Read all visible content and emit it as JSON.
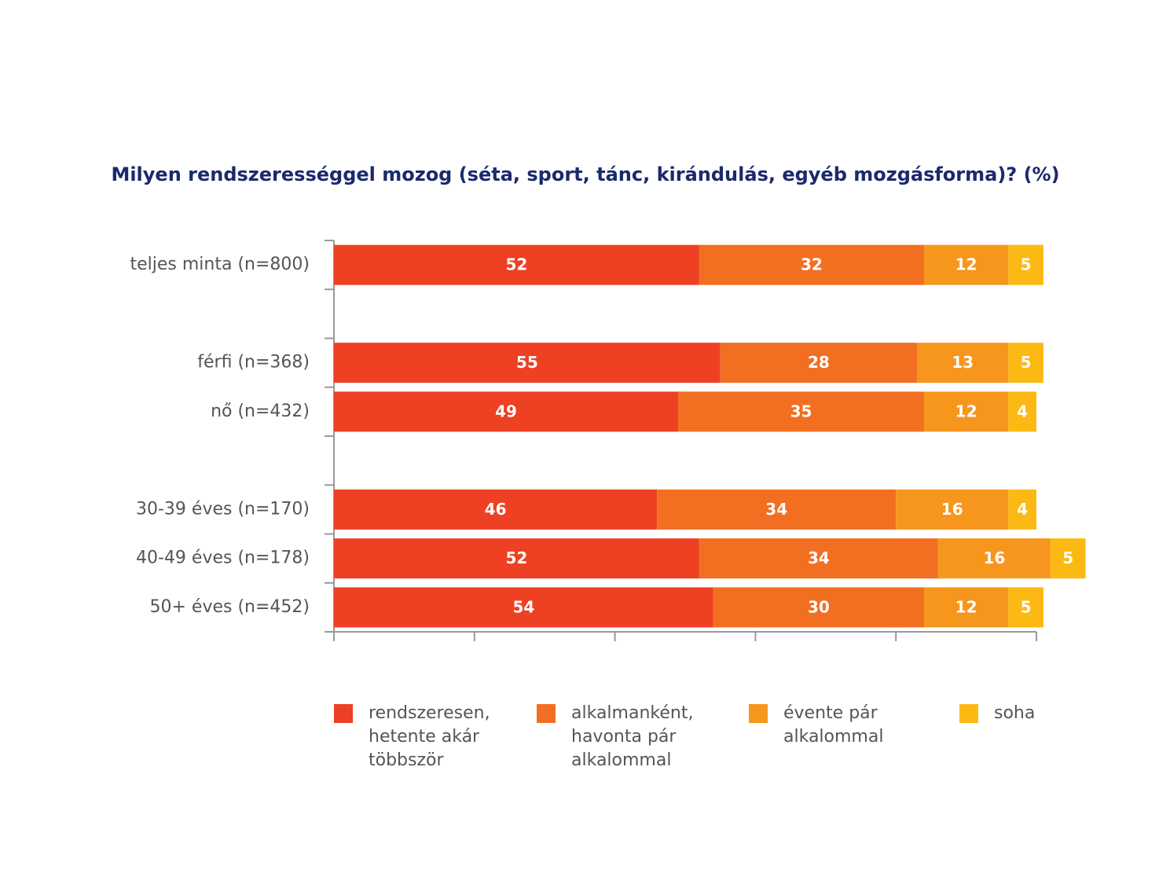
{
  "chart_data": {
    "type": "stacked-bar-horizontal",
    "title": "Milyen rendszerességgel mozog (séta, sport, tánc, kirándulás, egyéb mozgásforma)? (%)",
    "categories": [
      "teljes minta (n=800)",
      null,
      "férfi (n=368)",
      "nő (n=432)",
      null,
      "30-39 éves (n=170)",
      "40-49 éves (n=178)",
      "50+ éves (n=452)"
    ],
    "series": [
      {
        "name": "rendszeresen, hetente akár többször",
        "color": "#ee4023",
        "values": [
          52,
          null,
          55,
          49,
          null,
          46,
          52,
          54
        ]
      },
      {
        "name": "alkalmanként, havonta pár alkalommal",
        "color": "#f26f22",
        "values": [
          32,
          null,
          28,
          35,
          null,
          34,
          34,
          30
        ]
      },
      {
        "name": "évente pár alkalommal",
        "color": "#f7961d",
        "values": [
          12,
          null,
          13,
          12,
          null,
          16,
          16,
          12
        ]
      },
      {
        "name": "soha",
        "color": "#fdb913",
        "values": [
          5,
          null,
          5,
          4,
          null,
          4,
          5,
          5
        ]
      }
    ],
    "xlim": [
      0,
      100
    ],
    "xticks": [
      0,
      20,
      40,
      60,
      80,
      100
    ],
    "legend": "bottom"
  }
}
